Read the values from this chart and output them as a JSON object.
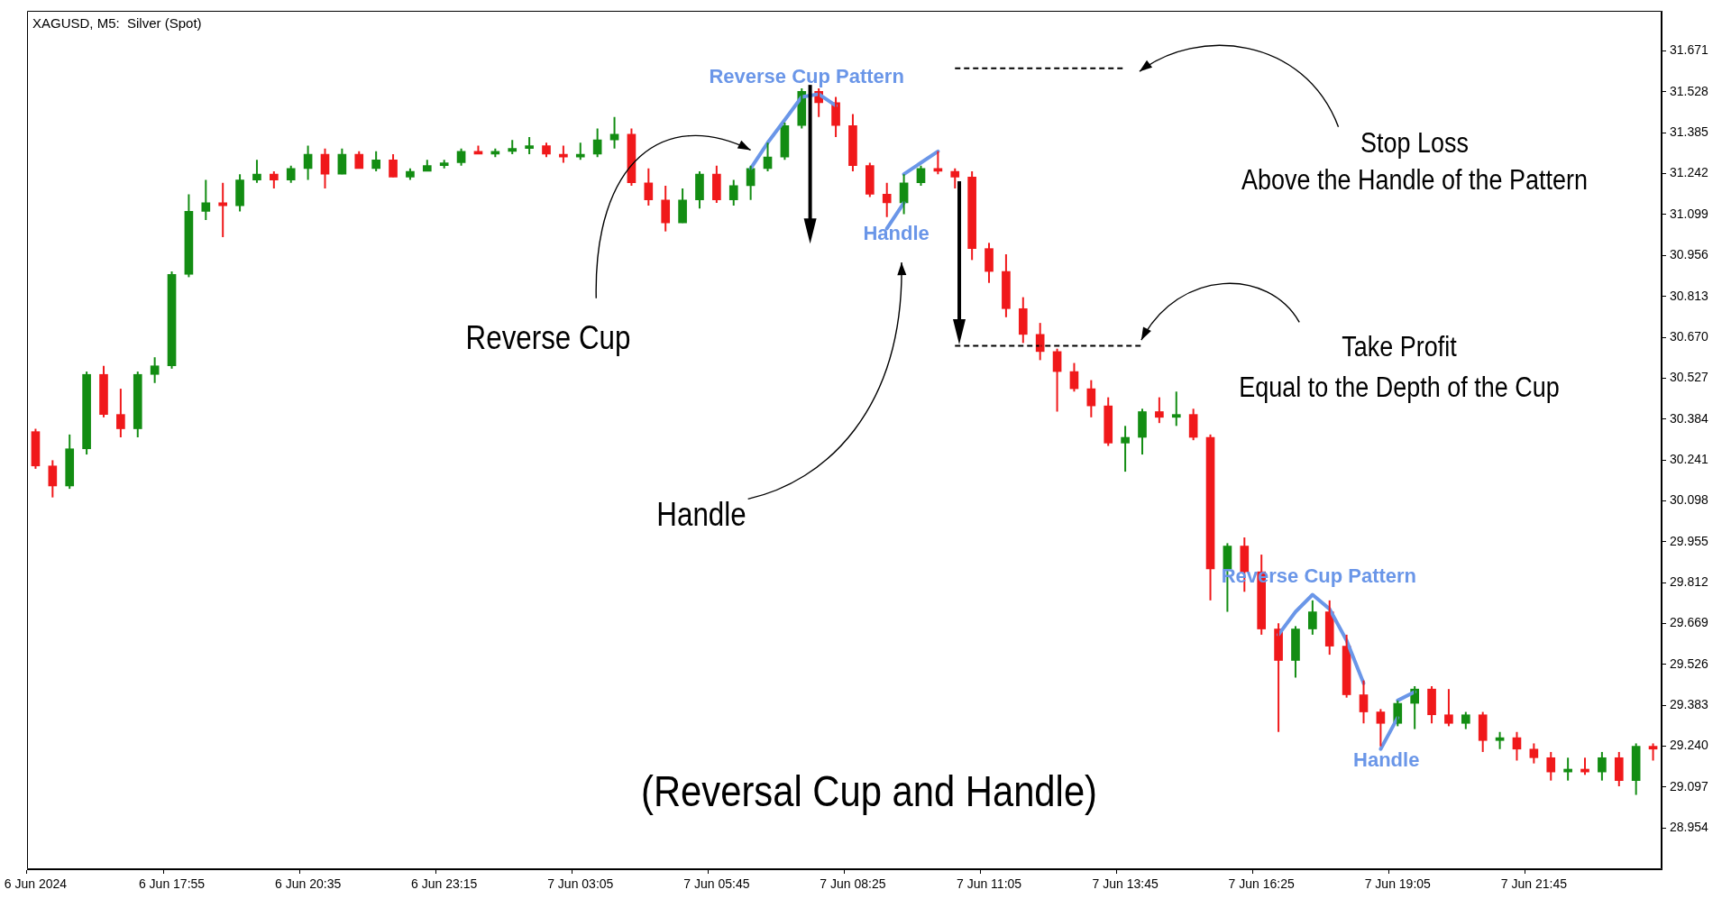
{
  "chart_data": {
    "type": "candlestick",
    "title": "XAGUSD, M5:  Silver (Spot)",
    "categories": [
      "6 Jun 2024",
      null,
      null,
      null,
      null,
      null,
      null,
      null,
      "6 Jun 17:55",
      null,
      null,
      null,
      null,
      null,
      null,
      null,
      "6 Jun 20:35",
      null,
      null,
      null,
      null,
      null,
      null,
      null,
      "6 Jun 23:15",
      null,
      null,
      null,
      null,
      null,
      null,
      null,
      "7 Jun 03:05",
      null,
      null,
      null,
      null,
      null,
      null,
      null,
      "7 Jun 05:45",
      null,
      null,
      null,
      null,
      null,
      null,
      null,
      "7 Jun 08:25",
      null,
      null,
      null,
      null,
      null,
      null,
      null,
      "7 Jun 11:05",
      null,
      null,
      null,
      null,
      null,
      null,
      null,
      "7 Jun 13:45",
      null,
      null,
      null,
      null,
      null,
      null,
      null,
      "7 Jun 16:25",
      null,
      null,
      null,
      null,
      null,
      null,
      null,
      "7 Jun 19:05",
      null,
      null,
      null,
      null,
      null,
      null,
      null,
      "7 Jun 21:45",
      null,
      null,
      null,
      null,
      null,
      null,
      null
    ],
    "ylim": [
      28.81,
      31.81
    ],
    "yticks": [
      28.954,
      29.097,
      {
        "value": 29.24,
        "label": "29.240"
      },
      29.383,
      29.526,
      29.669,
      29.812,
      29.955,
      30.098,
      30.241,
      30.384,
      30.527,
      {
        "value": 30.67,
        "label": "30.670"
      },
      30.813,
      30.956,
      31.099,
      31.242,
      31.385,
      31.528,
      31.671
    ],
    "marker": "none",
    "series": [
      {
        "ohlc": [
          [
            30.34,
            30.35,
            30.21,
            30.22
          ],
          [
            30.22,
            30.24,
            30.11,
            30.15
          ],
          [
            30.15,
            30.33,
            30.14,
            30.28
          ],
          [
            30.28,
            30.55,
            30.26,
            30.54
          ],
          [
            30.54,
            30.57,
            30.39,
            30.4
          ],
          [
            30.4,
            30.49,
            30.32,
            30.35
          ],
          [
            30.35,
            30.55,
            30.32,
            30.54
          ],
          [
            30.54,
            30.6,
            30.51,
            30.57
          ],
          [
            30.57,
            30.9,
            30.56,
            30.89
          ],
          [
            30.89,
            31.17,
            30.88,
            31.11
          ],
          [
            31.11,
            31.22,
            31.08,
            31.14
          ],
          [
            31.14,
            31.21,
            31.02,
            31.13
          ],
          [
            31.13,
            31.24,
            31.11,
            31.22
          ],
          [
            31.22,
            31.29,
            31.21,
            31.24
          ],
          [
            31.24,
            31.25,
            31.19,
            31.22
          ],
          [
            31.22,
            31.27,
            31.21,
            31.26
          ],
          [
            31.26,
            31.34,
            31.22,
            31.31
          ],
          [
            31.31,
            31.33,
            31.19,
            31.24
          ],
          [
            31.24,
            31.33,
            31.24,
            31.31
          ],
          [
            31.31,
            31.32,
            31.26,
            31.26
          ],
          [
            31.26,
            31.32,
            31.25,
            31.29
          ],
          [
            31.29,
            31.31,
            31.23,
            31.23
          ],
          [
            31.23,
            31.26,
            31.22,
            31.25
          ],
          [
            31.25,
            31.29,
            31.25,
            31.27
          ],
          [
            31.27,
            31.29,
            31.26,
            31.28
          ],
          [
            31.28,
            31.33,
            31.27,
            31.32
          ],
          [
            31.32,
            31.34,
            31.31,
            31.31
          ],
          [
            31.31,
            31.33,
            31.3,
            31.32
          ],
          [
            31.32,
            31.36,
            31.31,
            31.33
          ],
          [
            31.33,
            31.37,
            31.31,
            31.34
          ],
          [
            31.34,
            31.35,
            31.3,
            31.31
          ],
          [
            31.31,
            31.34,
            31.28,
            31.3
          ],
          [
            31.3,
            31.35,
            31.29,
            31.31
          ],
          [
            31.31,
            31.4,
            31.3,
            31.36
          ],
          [
            31.36,
            31.44,
            31.33,
            31.38
          ],
          [
            31.38,
            31.4,
            31.2,
            31.21
          ],
          [
            31.21,
            31.26,
            31.13,
            31.15
          ],
          [
            31.15,
            31.2,
            31.04,
            31.07
          ],
          [
            31.07,
            31.19,
            31.07,
            31.15
          ],
          [
            31.15,
            31.25,
            31.12,
            31.24
          ],
          [
            31.24,
            31.27,
            31.14,
            31.15
          ],
          [
            31.15,
            31.22,
            31.13,
            31.2
          ],
          [
            31.2,
            31.27,
            31.15,
            31.26
          ],
          [
            31.26,
            31.35,
            31.25,
            31.3
          ],
          [
            31.3,
            31.42,
            31.29,
            31.41
          ],
          [
            31.41,
            31.54,
            31.4,
            31.53
          ],
          [
            31.53,
            31.54,
            31.44,
            31.49
          ],
          [
            31.49,
            31.51,
            31.37,
            31.41
          ],
          [
            31.41,
            31.45,
            31.25,
            31.27
          ],
          [
            31.27,
            31.28,
            31.16,
            31.17
          ],
          [
            31.17,
            31.21,
            31.09,
            31.14
          ],
          [
            31.14,
            31.24,
            31.1,
            31.21
          ],
          [
            31.21,
            31.27,
            31.2,
            31.26
          ],
          [
            31.26,
            31.32,
            31.24,
            31.25
          ],
          [
            31.25,
            31.26,
            31.19,
            31.23
          ],
          [
            31.23,
            31.25,
            30.94,
            30.98
          ],
          [
            30.98,
            31.0,
            30.86,
            30.9
          ],
          [
            30.9,
            30.96,
            30.74,
            30.77
          ],
          [
            30.77,
            30.81,
            30.65,
            30.68
          ],
          [
            30.68,
            30.72,
            30.59,
            30.62
          ],
          [
            30.62,
            30.63,
            30.41,
            30.55
          ],
          [
            30.55,
            30.58,
            30.48,
            30.49
          ],
          [
            30.49,
            30.52,
            30.39,
            30.43
          ],
          [
            30.43,
            30.46,
            30.29,
            30.3
          ],
          [
            30.3,
            30.36,
            30.2,
            30.32
          ],
          [
            30.32,
            30.42,
            30.26,
            30.41
          ],
          [
            30.41,
            30.46,
            30.37,
            30.39
          ],
          [
            30.39,
            30.48,
            30.36,
            30.4
          ],
          [
            30.4,
            30.42,
            30.31,
            30.32
          ],
          [
            30.32,
            30.33,
            29.75,
            29.86
          ],
          [
            29.86,
            29.95,
            29.71,
            29.94
          ],
          [
            29.94,
            29.97,
            29.78,
            29.85
          ],
          [
            29.85,
            29.91,
            29.63,
            29.65
          ],
          [
            29.65,
            29.67,
            29.29,
            29.54
          ],
          [
            29.54,
            29.66,
            29.48,
            29.65
          ],
          [
            29.65,
            29.75,
            29.63,
            29.71
          ],
          [
            29.71,
            29.75,
            29.56,
            29.59
          ],
          [
            29.59,
            29.63,
            29.41,
            29.42
          ],
          [
            29.42,
            29.47,
            29.32,
            29.36
          ],
          [
            29.36,
            29.37,
            29.24,
            29.32
          ],
          [
            29.32,
            29.4,
            29.31,
            29.39
          ],
          [
            29.39,
            29.45,
            29.3,
            29.44
          ],
          [
            29.44,
            29.45,
            29.32,
            29.35
          ],
          [
            29.35,
            29.44,
            29.31,
            29.32
          ],
          [
            29.32,
            29.36,
            29.3,
            29.35
          ],
          [
            29.35,
            29.36,
            29.22,
            29.26
          ],
          [
            29.26,
            29.29,
            29.23,
            29.27
          ],
          [
            29.27,
            29.29,
            29.19,
            29.23
          ],
          [
            29.23,
            29.25,
            29.18,
            29.2
          ],
          [
            29.2,
            29.22,
            29.12,
            29.15
          ],
          [
            29.15,
            29.2,
            29.12,
            29.16
          ],
          [
            29.16,
            29.2,
            29.14,
            29.15
          ],
          [
            29.15,
            29.22,
            29.12,
            29.2
          ],
          [
            29.2,
            29.22,
            29.1,
            29.12
          ],
          [
            29.12,
            29.25,
            29.07,
            29.24
          ],
          [
            29.24,
            29.25,
            29.19,
            29.23
          ]
        ],
        "colors": [
          "#f0191b",
          "#f0191b",
          "#138d13",
          "#138d13",
          "#f0191b",
          "#f0191b",
          "#138d13",
          "#138d13",
          "#138d13",
          "#138d13",
          "#138d13",
          "#f0191b",
          "#138d13",
          "#138d13",
          "#f0191b",
          "#138d13",
          "#138d13",
          "#f0191b",
          "#138d13",
          "#f0191b",
          "#138d13",
          "#f0191b",
          "#138d13",
          "#138d13",
          "#138d13",
          "#138d13",
          "#f0191b",
          "#138d13",
          "#138d13",
          "#138d13",
          "#f0191b",
          "#f0191b",
          "#138d13",
          "#138d13",
          "#138d13",
          "#f0191b",
          "#f0191b",
          "#f0191b",
          "#138d13",
          "#138d13",
          "#f0191b",
          "#138d13",
          "#138d13",
          "#138d13",
          "#138d13",
          "#138d13",
          "#f0191b",
          "#f0191b",
          "#f0191b",
          "#f0191b",
          "#f0191b",
          "#138d13",
          "#138d13",
          "#f0191b",
          "#f0191b",
          "#f0191b",
          "#f0191b",
          "#f0191b",
          "#f0191b",
          "#f0191b",
          "#f0191b",
          "#f0191b",
          "#f0191b",
          "#f0191b",
          "#138d13",
          "#138d13",
          "#f0191b",
          "#138d13",
          "#f0191b",
          "#f0191b",
          "#138d13",
          "#f0191b",
          "#f0191b",
          "#f0191b",
          "#138d13",
          "#138d13",
          "#f0191b",
          "#f0191b",
          "#f0191b",
          "#f0191b",
          "#138d13",
          "#138d13",
          "#f0191b",
          "#f0191b",
          "#138d13",
          "#f0191b",
          "#138d13",
          "#f0191b",
          "#f0191b",
          "#f0191b",
          "#138d13",
          "#f0191b",
          "#138d13",
          "#f0191b",
          "#138d13",
          "#f0191b"
        ]
      },
      {
        "type": "line",
        "color": "#000000",
        "line_style": "dashed",
        "values": [
          null,
          null,
          null,
          null,
          null,
          null,
          null,
          null,
          null,
          null,
          null,
          null,
          null,
          null,
          null,
          null,
          null,
          null,
          null,
          null,
          null,
          null,
          null,
          null,
          null,
          null,
          null,
          null,
          null,
          null,
          null,
          null,
          null,
          null,
          null,
          null,
          null,
          null,
          null,
          null,
          null,
          null,
          null,
          null,
          null,
          null,
          null,
          null,
          null,
          null,
          null,
          null,
          null,
          null,
          31.61,
          31.61,
          31.61,
          31.61,
          31.61,
          31.61,
          31.61,
          31.61,
          31.61,
          31.61,
          31.61,
          null,
          null,
          null,
          null,
          null,
          null,
          null,
          null,
          null,
          null,
          null,
          null,
          null,
          null,
          null,
          null,
          null,
          null,
          null,
          null,
          null,
          null,
          null,
          null,
          null,
          null,
          null,
          null,
          null,
          null,
          null
        ]
      },
      {
        "type": "line",
        "color": "#000000",
        "line_style": "dashed",
        "values": [
          null,
          null,
          null,
          null,
          null,
          null,
          null,
          null,
          null,
          null,
          null,
          null,
          null,
          null,
          null,
          null,
          null,
          null,
          null,
          null,
          null,
          null,
          null,
          null,
          null,
          null,
          null,
          null,
          null,
          null,
          null,
          null,
          null,
          null,
          null,
          null,
          null,
          null,
          null,
          null,
          null,
          null,
          null,
          null,
          null,
          null,
          null,
          null,
          null,
          null,
          null,
          null,
          null,
          null,
          30.64,
          30.64,
          30.64,
          30.64,
          30.64,
          30.64,
          30.64,
          30.64,
          30.64,
          30.64,
          30.64,
          30.64,
          null,
          null,
          null,
          null,
          null,
          null,
          null,
          null,
          null,
          null,
          null,
          null,
          null,
          null,
          null,
          null,
          null,
          null,
          null,
          null,
          null,
          null,
          null,
          null,
          null,
          null,
          null,
          null,
          null,
          null
        ]
      },
      {
        "type": "line",
        "color": "#6a96e8",
        "line_style": "solid",
        "values": [
          null,
          null,
          null,
          null,
          null,
          null,
          null,
          null,
          null,
          null,
          null,
          null,
          null,
          null,
          null,
          null,
          null,
          null,
          null,
          null,
          null,
          null,
          null,
          null,
          null,
          null,
          null,
          null,
          null,
          null,
          null,
          null,
          null,
          null,
          null,
          null,
          null,
          null,
          null,
          null,
          null,
          null,
          31.26,
          31.35,
          31.43,
          31.51,
          31.52,
          31.48,
          null,
          null,
          null,
          null,
          null,
          null,
          null,
          null,
          null,
          null,
          null,
          null,
          null,
          null,
          null,
          null,
          null,
          null,
          null,
          null,
          null,
          null,
          null,
          null,
          null,
          null,
          null,
          null,
          null,
          null,
          null,
          null,
          null,
          null,
          null,
          null,
          null,
          null,
          null,
          null,
          null,
          null,
          null,
          null,
          null,
          null,
          null,
          null
        ]
      },
      {
        "type": "line",
        "color": "#6a96e8",
        "line_style": "solid",
        "values": [
          null,
          null,
          null,
          null,
          null,
          null,
          null,
          null,
          null,
          null,
          null,
          null,
          null,
          null,
          null,
          null,
          null,
          null,
          null,
          null,
          null,
          null,
          null,
          null,
          null,
          null,
          null,
          null,
          null,
          null,
          null,
          null,
          null,
          null,
          null,
          null,
          null,
          null,
          null,
          null,
          null,
          null,
          null,
          null,
          null,
          null,
          null,
          null,
          null,
          null,
          31.05,
          31.14,
          null,
          null,
          null,
          null,
          null,
          null,
          null,
          null,
          null,
          null,
          null,
          null,
          null,
          null,
          null,
          null,
          null,
          null,
          null,
          null,
          null,
          null,
          null,
          null,
          null,
          null,
          null,
          null,
          null,
          null,
          null,
          null,
          null,
          null,
          null,
          null,
          null,
          null,
          null,
          null,
          null,
          null,
          null,
          null
        ]
      },
      {
        "type": "line",
        "color": "#6a96e8",
        "line_style": "solid",
        "values": [
          null,
          null,
          null,
          null,
          null,
          null,
          null,
          null,
          null,
          null,
          null,
          null,
          null,
          null,
          null,
          null,
          null,
          null,
          null,
          null,
          null,
          null,
          null,
          null,
          null,
          null,
          null,
          null,
          null,
          null,
          null,
          null,
          null,
          null,
          null,
          null,
          null,
          null,
          null,
          null,
          null,
          null,
          null,
          null,
          null,
          null,
          null,
          null,
          null,
          null,
          null,
          31.24,
          31.28,
          31.32,
          null,
          null,
          null,
          null,
          null,
          null,
          null,
          null,
          null,
          null,
          null,
          null,
          null,
          null,
          null,
          null,
          null,
          null,
          null,
          null,
          null,
          null,
          null,
          null,
          null,
          null,
          null,
          null,
          null,
          null,
          null,
          null,
          null,
          null,
          null,
          null,
          null,
          null,
          null,
          null,
          null,
          null
        ]
      },
      {
        "type": "line",
        "color": "#6a96e8",
        "line_style": "solid",
        "values": [
          null,
          null,
          null,
          null,
          null,
          null,
          null,
          null,
          null,
          null,
          null,
          null,
          null,
          null,
          null,
          null,
          null,
          null,
          null,
          null,
          null,
          null,
          null,
          null,
          null,
          null,
          null,
          null,
          null,
          null,
          null,
          null,
          null,
          null,
          null,
          null,
          null,
          null,
          null,
          null,
          null,
          null,
          null,
          null,
          null,
          null,
          null,
          null,
          null,
          null,
          null,
          null,
          null,
          null,
          null,
          null,
          null,
          null,
          null,
          null,
          null,
          null,
          null,
          null,
          null,
          null,
          null,
          null,
          null,
          null,
          null,
          null,
          null,
          29.63,
          29.71,
          29.77,
          29.72,
          29.61,
          29.46,
          null,
          null,
          null,
          null,
          null,
          null,
          null,
          null,
          null,
          null,
          null,
          null,
          null,
          null,
          null,
          null,
          null
        ]
      },
      {
        "type": "line",
        "color": "#6a96e8",
        "line_style": "solid",
        "values": [
          null,
          null,
          null,
          null,
          null,
          null,
          null,
          null,
          null,
          null,
          null,
          null,
          null,
          null,
          null,
          null,
          null,
          null,
          null,
          null,
          null,
          null,
          null,
          null,
          null,
          null,
          null,
          null,
          null,
          null,
          null,
          null,
          null,
          null,
          null,
          null,
          null,
          null,
          null,
          null,
          null,
          null,
          null,
          null,
          null,
          null,
          null,
          null,
          null,
          null,
          null,
          null,
          null,
          null,
          null,
          null,
          null,
          null,
          null,
          null,
          null,
          null,
          null,
          null,
          null,
          null,
          null,
          null,
          null,
          null,
          null,
          null,
          null,
          null,
          null,
          null,
          null,
          null,
          null,
          29.23,
          29.34,
          null,
          null,
          null,
          null,
          null,
          null,
          null,
          null,
          null,
          null,
          null,
          null,
          null,
          null,
          null
        ]
      },
      {
        "type": "line",
        "color": "#6a96e8",
        "line_style": "solid",
        "values": [
          null,
          null,
          null,
          null,
          null,
          null,
          null,
          null,
          null,
          null,
          null,
          null,
          null,
          null,
          null,
          null,
          null,
          null,
          null,
          null,
          null,
          null,
          null,
          null,
          null,
          null,
          null,
          null,
          null,
          null,
          null,
          null,
          null,
          null,
          null,
          null,
          null,
          null,
          null,
          null,
          null,
          null,
          null,
          null,
          null,
          null,
          null,
          null,
          null,
          null,
          null,
          null,
          null,
          null,
          null,
          null,
          null,
          null,
          null,
          null,
          null,
          null,
          null,
          null,
          null,
          null,
          null,
          null,
          null,
          null,
          null,
          null,
          null,
          null,
          null,
          null,
          null,
          null,
          null,
          null,
          29.4,
          29.43,
          null,
          null,
          null,
          null,
          null,
          null,
          null,
          null,
          null,
          null,
          null,
          null,
          null,
          null
        ]
      }
    ],
    "annotations": [
      "Reverse Cup Pattern",
      "Handle",
      "Reverse Cup Pattern",
      "Handle",
      "Reverse Cup",
      "Handle",
      "Stop Loss\nAbove the Handle of the Pattern",
      "Take Profit\nEqual to the Depth of the Cup",
      "(Reversal Cup and Handle)"
    ]
  }
}
